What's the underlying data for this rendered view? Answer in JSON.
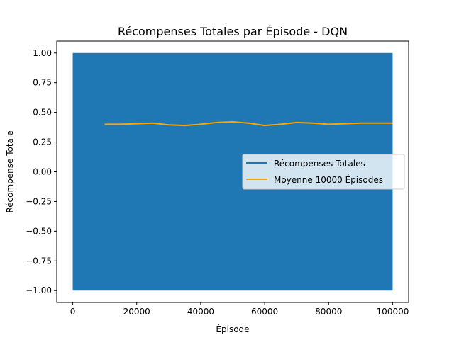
{
  "chart_data": {
    "type": "line",
    "title": "Récompenses Totales par Épisode - DQN",
    "xlabel": "Épisode",
    "ylabel": "Récompense Totale",
    "xlim": [
      -5000,
      105000
    ],
    "ylim": [
      -1.1,
      1.1
    ],
    "xticks": [
      0,
      20000,
      40000,
      60000,
      80000,
      100000
    ],
    "xtick_labels": [
      "0",
      "20000",
      "40000",
      "60000",
      "80000",
      "100000"
    ],
    "yticks": [
      -1.0,
      -0.75,
      -0.5,
      -0.25,
      0.0,
      0.25,
      0.5,
      0.75,
      1.0
    ],
    "ytick_labels": [
      "−1.00",
      "−0.75",
      "−0.50",
      "−0.25",
      "0.00",
      "0.25",
      "0.50",
      "0.75",
      "1.00"
    ],
    "grid": false,
    "legend_position": "center-right",
    "series": [
      {
        "name": "Récompenses Totales",
        "color": "#1f77b4",
        "kind": "dense-oscillation",
        "x_range": [
          0,
          100000
        ],
        "y_range": [
          -1.0,
          1.0
        ]
      },
      {
        "name": "Moyenne 10000 Épisodes",
        "color": "#ffa500",
        "x": [
          10000,
          15000,
          20000,
          25000,
          30000,
          35000,
          40000,
          45000,
          50000,
          55000,
          60000,
          65000,
          70000,
          75000,
          80000,
          85000,
          90000,
          95000,
          100000
        ],
        "y": [
          0.4,
          0.4,
          0.405,
          0.41,
          0.395,
          0.39,
          0.4,
          0.415,
          0.42,
          0.41,
          0.39,
          0.4,
          0.415,
          0.41,
          0.4,
          0.405,
          0.41,
          0.41,
          0.41
        ]
      }
    ]
  }
}
